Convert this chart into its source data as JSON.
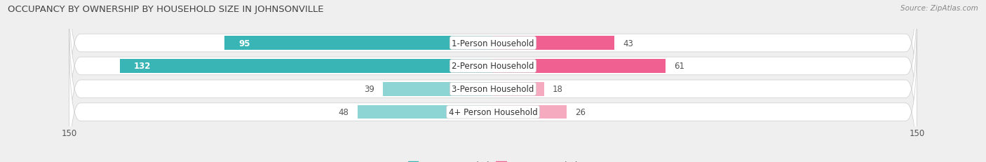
{
  "title": "OCCUPANCY BY OWNERSHIP BY HOUSEHOLD SIZE IN JOHNSONVILLE",
  "source": "Source: ZipAtlas.com",
  "categories": [
    "1-Person Household",
    "2-Person Household",
    "3-Person Household",
    "4+ Person Household"
  ],
  "owner_values": [
    95,
    132,
    39,
    48
  ],
  "renter_values": [
    43,
    61,
    18,
    26
  ],
  "owner_color_dark": "#3ab5b5",
  "owner_color_light": "#8dd5d5",
  "renter_color_dark": "#f06090",
  "renter_color_light": "#f5aac0",
  "axis_max": 150,
  "background_color": "#efefef",
  "row_bg_color": "#ffffff",
  "row_sep_color": "#d8d8d8",
  "title_fontsize": 9.5,
  "source_fontsize": 7.5,
  "tick_fontsize": 8.5,
  "legend_fontsize": 8.5,
  "bar_label_fontsize": 8.5,
  "category_label_fontsize": 8.5,
  "owner_threshold": 60,
  "renter_threshold": 30
}
